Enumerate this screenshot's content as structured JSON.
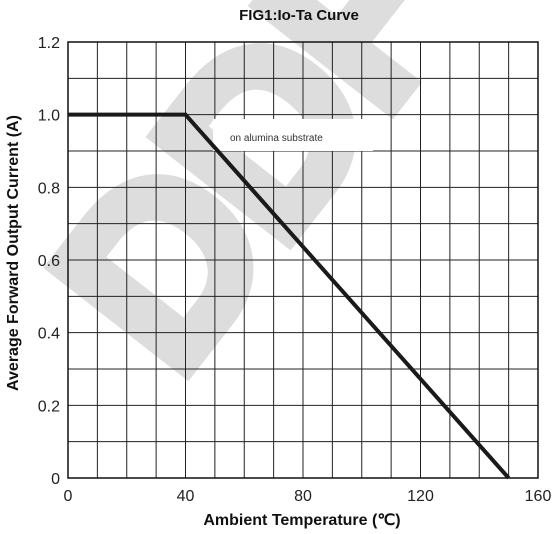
{
  "chart_data": {
    "type": "line",
    "title": "FIG1:Io-Ta Curve",
    "xlabel": "Ambient Temperature (℃)",
    "ylabel": "Average Forward Output Current (A)",
    "xlim": [
      0,
      160
    ],
    "ylim": [
      0,
      1.2
    ],
    "x_minor_step": 10,
    "y_minor_step": 0.1,
    "x_tick_labels": [
      "0",
      "40",
      "80",
      "120",
      "160"
    ],
    "y_tick_labels": [
      "0",
      "0.2",
      "0.4",
      "0.6",
      "0.8",
      "1.0",
      "1.2"
    ],
    "grid": true,
    "series": [
      {
        "x": [
          0,
          40,
          150
        ],
        "y": [
          1.0,
          1.0,
          0.0
        ],
        "color": "#1a1a1a"
      }
    ],
    "annotations": [
      {
        "text": "on alumina substrate",
        "x": 63,
        "y": 0.92
      }
    ],
    "watermark": "DDF"
  }
}
